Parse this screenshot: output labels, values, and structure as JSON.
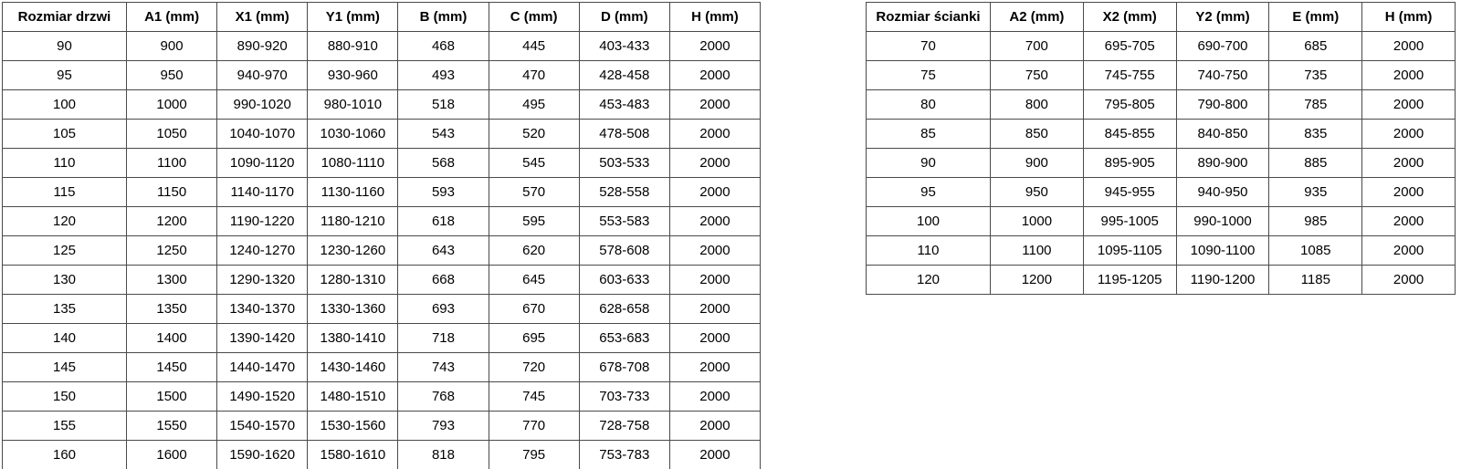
{
  "door_table": {
    "name": "door-size-table",
    "headers": [
      "Rozmiar drzwi",
      "A1 (mm)",
      "X1 (mm)",
      "Y1 (mm)",
      "B (mm)",
      "C (mm)",
      "D (mm)",
      "H (mm)"
    ],
    "rows": [
      [
        "90",
        "900",
        "890-920",
        "880-910",
        "468",
        "445",
        "403-433",
        "2000"
      ],
      [
        "95",
        "950",
        "940-970",
        "930-960",
        "493",
        "470",
        "428-458",
        "2000"
      ],
      [
        "100",
        "1000",
        "990-1020",
        "980-1010",
        "518",
        "495",
        "453-483",
        "2000"
      ],
      [
        "105",
        "1050",
        "1040-1070",
        "1030-1060",
        "543",
        "520",
        "478-508",
        "2000"
      ],
      [
        "110",
        "1100",
        "1090-1120",
        "1080-1110",
        "568",
        "545",
        "503-533",
        "2000"
      ],
      [
        "115",
        "1150",
        "1140-1170",
        "1130-1160",
        "593",
        "570",
        "528-558",
        "2000"
      ],
      [
        "120",
        "1200",
        "1190-1220",
        "1180-1210",
        "618",
        "595",
        "553-583",
        "2000"
      ],
      [
        "125",
        "1250",
        "1240-1270",
        "1230-1260",
        "643",
        "620",
        "578-608",
        "2000"
      ],
      [
        "130",
        "1300",
        "1290-1320",
        "1280-1310",
        "668",
        "645",
        "603-633",
        "2000"
      ],
      [
        "135",
        "1350",
        "1340-1370",
        "1330-1360",
        "693",
        "670",
        "628-658",
        "2000"
      ],
      [
        "140",
        "1400",
        "1390-1420",
        "1380-1410",
        "718",
        "695",
        "653-683",
        "2000"
      ],
      [
        "145",
        "1450",
        "1440-1470",
        "1430-1460",
        "743",
        "720",
        "678-708",
        "2000"
      ],
      [
        "150",
        "1500",
        "1490-1520",
        "1480-1510",
        "768",
        "745",
        "703-733",
        "2000"
      ],
      [
        "155",
        "1550",
        "1540-1570",
        "1530-1560",
        "793",
        "770",
        "728-758",
        "2000"
      ],
      [
        "160",
        "1600",
        "1590-1620",
        "1580-1610",
        "818",
        "795",
        "753-783",
        "2000"
      ]
    ]
  },
  "wall_table": {
    "name": "wall-size-table",
    "headers": [
      "Rozmiar ścianki",
      "A2 (mm)",
      "X2 (mm)",
      "Y2 (mm)",
      "E (mm)",
      "H (mm)"
    ],
    "rows": [
      [
        "70",
        "700",
        "695-705",
        "690-700",
        "685",
        "2000"
      ],
      [
        "75",
        "750",
        "745-755",
        "740-750",
        "735",
        "2000"
      ],
      [
        "80",
        "800",
        "795-805",
        "790-800",
        "785",
        "2000"
      ],
      [
        "85",
        "850",
        "845-855",
        "840-850",
        "835",
        "2000"
      ],
      [
        "90",
        "900",
        "895-905",
        "890-900",
        "885",
        "2000"
      ],
      [
        "95",
        "950",
        "945-955",
        "940-950",
        "935",
        "2000"
      ],
      [
        "100",
        "1000",
        "995-1005",
        "990-1000",
        "985",
        "2000"
      ],
      [
        "110",
        "1100",
        "1095-1105",
        "1090-1100",
        "1085",
        "2000"
      ],
      [
        "120",
        "1200",
        "1195-1205",
        "1190-1200",
        "1185",
        "2000"
      ]
    ]
  },
  "colors": {
    "border": "#4a4a4a",
    "text": "#000000",
    "background": "#ffffff"
  }
}
